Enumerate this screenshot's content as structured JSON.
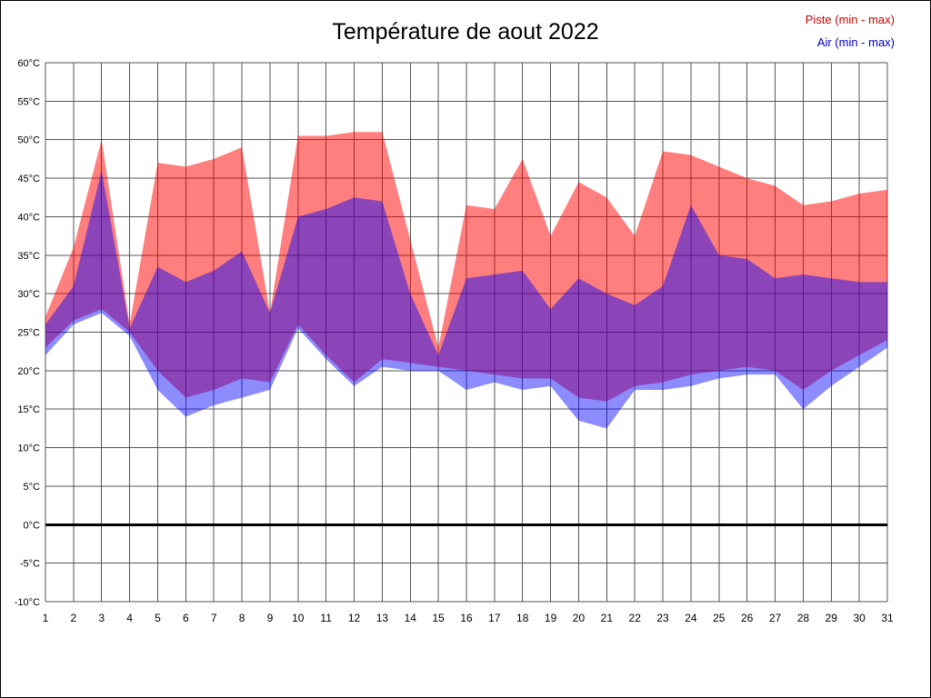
{
  "chart_data": {
    "type": "area",
    "title": "Température de aout 2022",
    "x_label": "",
    "y_unit": "°C",
    "ylim": [
      -10,
      60
    ],
    "y_step": 5,
    "x": [
      1,
      2,
      3,
      4,
      5,
      6,
      7,
      8,
      9,
      10,
      11,
      12,
      13,
      14,
      15,
      16,
      17,
      18,
      19,
      20,
      21,
      22,
      23,
      24,
      25,
      26,
      27,
      28,
      29,
      30,
      31
    ],
    "grid": true,
    "grid_color": "#555555",
    "zero_line": true,
    "zero_line_color": "#000000",
    "legend_position": "top-right",
    "legend": [
      {
        "label": "Piste (min - max)",
        "color": "#cc0000"
      },
      {
        "label": "Air (min - max)",
        "color": "#0000cc"
      }
    ],
    "bands": [
      {
        "id": "piste-band",
        "name": "Piste (min - max)",
        "fill": "rgba(255,0,0,0.5)",
        "max": [
          27,
          36,
          50,
          26,
          47,
          46.5,
          47.5,
          49,
          27.5,
          50.5,
          50.5,
          51,
          51,
          37,
          23,
          41.5,
          41,
          47.5,
          37.5,
          44.5,
          42.5,
          37.5,
          48.5,
          48,
          46.5,
          45,
          44,
          41.5,
          42,
          43,
          43.5
        ],
        "min": [
          23,
          26.5,
          28,
          25,
          20,
          16.5,
          17.5,
          19,
          18.5,
          26,
          22,
          18.5,
          21.5,
          21,
          20.5,
          20,
          19.5,
          19,
          19,
          16.5,
          16,
          18,
          18.5,
          19.5,
          20,
          20.5,
          20,
          17.5,
          20,
          22,
          24
        ]
      },
      {
        "id": "air-band",
        "name": "Air (min - max)",
        "fill": "rgba(0,0,255,0.45)",
        "max": [
          26,
          31,
          46,
          25.5,
          33.5,
          31.5,
          33,
          35.5,
          27.5,
          40,
          41,
          42.5,
          42,
          30,
          22,
          32,
          32.5,
          33,
          28,
          32,
          30,
          28.5,
          31,
          41.5,
          35,
          34.5,
          32,
          32.5,
          32,
          31.5,
          31.5
        ],
        "min": [
          22,
          26,
          27.5,
          24.5,
          17.5,
          14,
          15.5,
          16.5,
          17.5,
          25.5,
          21.5,
          18,
          20.5,
          20,
          20,
          17.5,
          18.5,
          17.5,
          18,
          13.5,
          12.5,
          17.5,
          17.5,
          18,
          19,
          19.5,
          19.5,
          15,
          18,
          20.5,
          23
        ]
      }
    ]
  }
}
